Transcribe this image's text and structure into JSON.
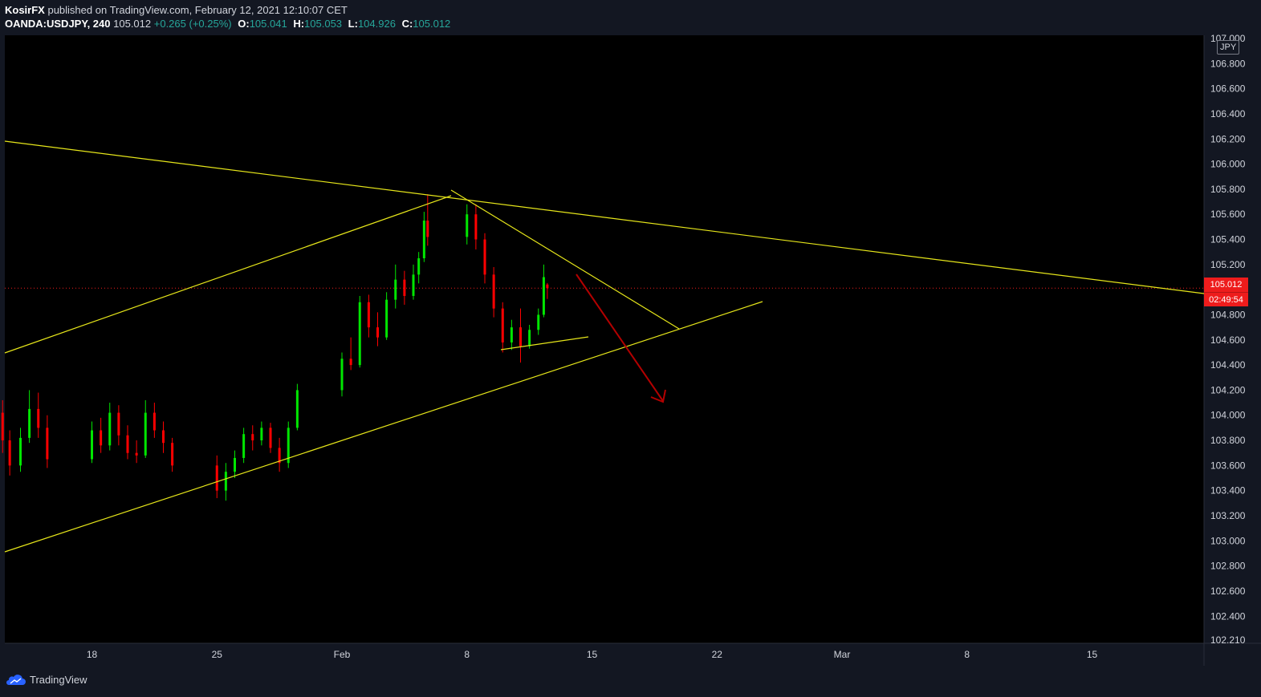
{
  "header": {
    "author": "KosirFX",
    "published_text": "published on TradingView.com, February 12, 2021 12:10:07 CET",
    "symbol": "OANDA:USDJPY, 240",
    "last": "105.012",
    "change": "+0.265 (+0.25%)",
    "open_label": "O:",
    "open": "105.041",
    "high_label": "H:",
    "high": "105.053",
    "low_label": "L:",
    "low": "104.926",
    "close_label": "C:",
    "close": "105.012"
  },
  "currency": "JPY",
  "price_tag": {
    "price": "105.012",
    "countdown": "02:49:54"
  },
  "footer": {
    "brand": "TradingView"
  },
  "colors": {
    "background": "#000000",
    "up": "#00e600",
    "down": "#ff0000",
    "trendline": "#e6e61a",
    "arrow": "#b30000",
    "price_line": "#ee1c1c"
  },
  "chart_data": {
    "type": "candlestick",
    "symbol": "OANDA:USDJPY",
    "interval": "240",
    "y_ticks": [
      "107.000",
      "106.800",
      "106.600",
      "106.400",
      "106.200",
      "106.000",
      "105.800",
      "105.600",
      "105.400",
      "105.200",
      "104.800",
      "104.600",
      "104.400",
      "104.200",
      "104.000",
      "103.800",
      "103.600",
      "103.400",
      "103.200",
      "103.000",
      "102.800",
      "102.600",
      "102.400",
      "102.210"
    ],
    "ylim": [
      102.21,
      107.0
    ],
    "x_ticks": [
      {
        "label": "18",
        "date": "2021-01-18"
      },
      {
        "label": "25",
        "date": "2021-01-25"
      },
      {
        "label": "Feb",
        "date": "2021-02-01"
      },
      {
        "label": "8",
        "date": "2021-02-08"
      },
      {
        "label": "15",
        "date": "2021-02-15"
      },
      {
        "label": "22",
        "date": "2021-02-22"
      },
      {
        "label": "Mar",
        "date": "2021-03-01"
      },
      {
        "label": "8",
        "date": "2021-03-08"
      },
      {
        "label": "15",
        "date": "2021-03-15"
      }
    ],
    "last_price": 105.012,
    "candles": [
      {
        "d": "2021-01-13",
        "o": 104.02,
        "h": 104.12,
        "l": 103.7,
        "c": 103.8
      },
      {
        "d": "2021-01-13.4",
        "o": 103.8,
        "h": 103.88,
        "l": 103.52,
        "c": 103.6
      },
      {
        "d": "2021-01-14",
        "o": 103.6,
        "h": 103.9,
        "l": 103.55,
        "c": 103.82
      },
      {
        "d": "2021-01-14.5",
        "o": 103.82,
        "h": 104.2,
        "l": 103.78,
        "c": 104.05
      },
      {
        "d": "2021-01-15",
        "o": 104.05,
        "h": 104.18,
        "l": 103.82,
        "c": 103.9
      },
      {
        "d": "2021-01-15.5",
        "o": 103.9,
        "h": 104.0,
        "l": 103.58,
        "c": 103.65
      },
      {
        "d": "2021-01-18",
        "o": 103.65,
        "h": 103.95,
        "l": 103.62,
        "c": 103.88
      },
      {
        "d": "2021-01-18.5",
        "o": 103.88,
        "h": 103.98,
        "l": 103.7,
        "c": 103.76
      },
      {
        "d": "2021-01-19",
        "o": 103.76,
        "h": 104.1,
        "l": 103.72,
        "c": 104.02
      },
      {
        "d": "2021-01-19.5",
        "o": 104.02,
        "h": 104.08,
        "l": 103.76,
        "c": 103.84
      },
      {
        "d": "2021-01-20",
        "o": 103.84,
        "h": 103.92,
        "l": 103.65,
        "c": 103.7
      },
      {
        "d": "2021-01-20.5",
        "o": 103.7,
        "h": 103.8,
        "l": 103.62,
        "c": 103.68
      },
      {
        "d": "2021-01-21",
        "o": 103.68,
        "h": 104.12,
        "l": 103.66,
        "c": 104.02
      },
      {
        "d": "2021-01-21.5",
        "o": 104.02,
        "h": 104.1,
        "l": 103.82,
        "c": 103.88
      },
      {
        "d": "2021-01-22",
        "o": 103.88,
        "h": 103.95,
        "l": 103.7,
        "c": 103.78
      },
      {
        "d": "2021-01-22.5",
        "o": 103.78,
        "h": 103.82,
        "l": 103.55,
        "c": 103.6
      },
      {
        "d": "2021-01-25",
        "o": 103.6,
        "h": 103.68,
        "l": 103.34,
        "c": 103.4
      },
      {
        "d": "2021-01-25.5",
        "o": 103.4,
        "h": 103.62,
        "l": 103.32,
        "c": 103.55
      },
      {
        "d": "2021-01-26",
        "o": 103.55,
        "h": 103.72,
        "l": 103.5,
        "c": 103.66
      },
      {
        "d": "2021-01-26.5",
        "o": 103.66,
        "h": 103.9,
        "l": 103.62,
        "c": 103.85
      },
      {
        "d": "2021-01-27",
        "o": 103.85,
        "h": 103.92,
        "l": 103.72,
        "c": 103.8
      },
      {
        "d": "2021-01-27.5",
        "o": 103.8,
        "h": 103.95,
        "l": 103.76,
        "c": 103.9
      },
      {
        "d": "2021-01-28",
        "o": 103.9,
        "h": 103.94,
        "l": 103.7,
        "c": 103.74
      },
      {
        "d": "2021-01-28.5",
        "o": 103.74,
        "h": 103.82,
        "l": 103.55,
        "c": 103.62
      },
      {
        "d": "2021-01-29",
        "o": 103.62,
        "h": 103.95,
        "l": 103.58,
        "c": 103.9
      },
      {
        "d": "2021-01-29.5",
        "o": 103.9,
        "h": 104.25,
        "l": 103.88,
        "c": 104.2
      },
      {
        "d": "2021-02-01",
        "o": 104.2,
        "h": 104.5,
        "l": 104.15,
        "c": 104.45
      },
      {
        "d": "2021-02-01.5",
        "o": 104.45,
        "h": 104.62,
        "l": 104.36,
        "c": 104.4
      },
      {
        "d": "2021-02-02",
        "o": 104.4,
        "h": 104.95,
        "l": 104.38,
        "c": 104.9
      },
      {
        "d": "2021-02-02.5",
        "o": 104.9,
        "h": 104.96,
        "l": 104.62,
        "c": 104.7
      },
      {
        "d": "2021-02-03",
        "o": 104.7,
        "h": 104.82,
        "l": 104.55,
        "c": 104.62
      },
      {
        "d": "2021-02-03.5",
        "o": 104.62,
        "h": 104.98,
        "l": 104.6,
        "c": 104.92
      },
      {
        "d": "2021-02-04",
        "o": 104.92,
        "h": 105.2,
        "l": 104.85,
        "c": 105.08
      },
      {
        "d": "2021-02-04.5",
        "o": 105.08,
        "h": 105.15,
        "l": 104.88,
        "c": 104.95
      },
      {
        "d": "2021-02-05",
        "o": 104.95,
        "h": 105.2,
        "l": 104.92,
        "c": 105.12
      },
      {
        "d": "2021-02-05.3",
        "o": 105.12,
        "h": 105.3,
        "l": 105.05,
        "c": 105.25
      },
      {
        "d": "2021-02-05.6",
        "o": 105.25,
        "h": 105.62,
        "l": 105.22,
        "c": 105.55
      },
      {
        "d": "2021-02-05.8",
        "o": 105.55,
        "h": 105.76,
        "l": 105.35,
        "c": 105.42
      },
      {
        "d": "2021-02-08",
        "o": 105.42,
        "h": 105.68,
        "l": 105.36,
        "c": 105.6
      },
      {
        "d": "2021-02-08.5",
        "o": 105.6,
        "h": 105.68,
        "l": 105.32,
        "c": 105.4
      },
      {
        "d": "2021-02-09",
        "o": 105.4,
        "h": 105.45,
        "l": 105.05,
        "c": 105.12
      },
      {
        "d": "2021-02-09.5",
        "o": 105.12,
        "h": 105.18,
        "l": 104.78,
        "c": 104.85
      },
      {
        "d": "2021-02-10",
        "o": 104.85,
        "h": 104.9,
        "l": 104.5,
        "c": 104.58
      },
      {
        "d": "2021-02-10.5",
        "o": 104.58,
        "h": 104.76,
        "l": 104.52,
        "c": 104.7
      },
      {
        "d": "2021-02-11",
        "o": 104.7,
        "h": 104.85,
        "l": 104.42,
        "c": 104.55
      },
      {
        "d": "2021-02-11.5",
        "o": 104.55,
        "h": 104.72,
        "l": 104.53,
        "c": 104.68
      },
      {
        "d": "2021-02-12",
        "o": 104.68,
        "h": 104.85,
        "l": 104.64,
        "c": 104.8
      },
      {
        "d": "2021-02-12.3",
        "o": 104.8,
        "h": 105.2,
        "l": 104.78,
        "c": 105.1
      },
      {
        "d": "2021-02-12.5",
        "o": 105.041,
        "h": 105.053,
        "l": 104.926,
        "c": 105.012
      }
    ]
  }
}
